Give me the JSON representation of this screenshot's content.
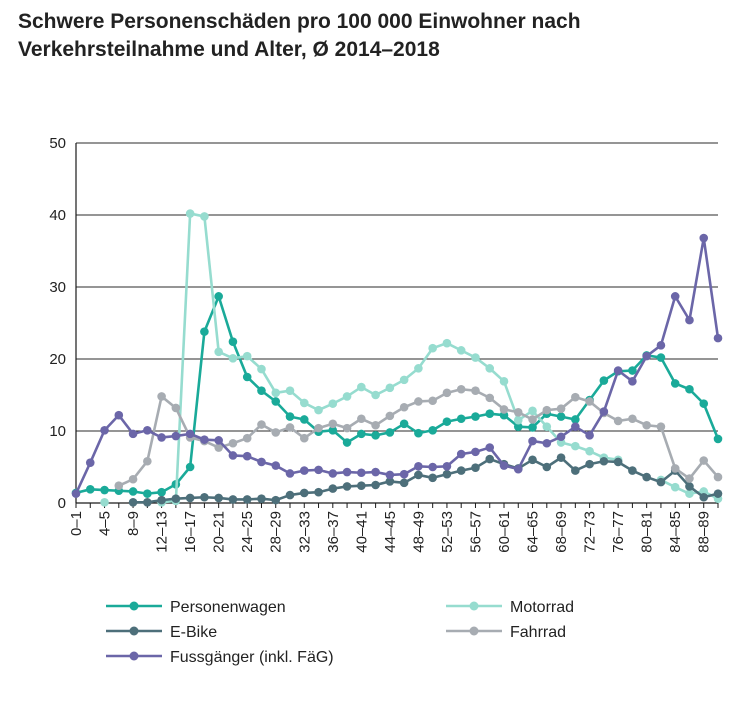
{
  "title_line1": "Schwere Personenschäden pro 100 000 Einwohner nach",
  "title_line2": "Verkehrsteilnahme und Alter, Ø 2014–2018",
  "chart_data": {
    "type": "line",
    "ylim": [
      0,
      50
    ],
    "y_ticks": [
      0,
      10,
      20,
      30,
      40,
      50
    ],
    "grid": "horizontal",
    "x": [
      "0–1",
      "2–3",
      "4–5",
      "6–7",
      "8–9",
      "10–11",
      "12–13",
      "14–15",
      "16–17",
      "18–19",
      "20–21",
      "22–23",
      "24–25",
      "26–27",
      "28–29",
      "30–31",
      "32–33",
      "34–35",
      "36–37",
      "38–39",
      "40–41",
      "42–43",
      "44–45",
      "46–47",
      "48–49",
      "50–51",
      "52–53",
      "54–55",
      "56–57",
      "58–59",
      "60–61",
      "62–63",
      "64–65",
      "66–67",
      "68–69",
      "70–71",
      "72–73",
      "74–75",
      "76–77",
      "78–79",
      "80–81",
      "82–83",
      "84–85",
      "86–87",
      "88–89",
      "90+"
    ],
    "x_tick_labels": [
      "0–1",
      "",
      "4–5",
      "",
      "8–9",
      "",
      "12–13",
      "",
      "16–17",
      "",
      "20–21",
      "",
      "24–25",
      "",
      "28–29",
      "",
      "32–33",
      "",
      "36–37",
      "",
      "40–41",
      "",
      "44–45",
      "",
      "48–49",
      "",
      "52–53",
      "",
      "56–57",
      "",
      "60–61",
      "",
      "64–65",
      "",
      "68–69",
      "",
      "72–73",
      "",
      "76–77",
      "",
      "80–81",
      "",
      "84–85",
      "",
      "88–89",
      ""
    ],
    "legend_position": "bottom",
    "series": [
      {
        "name": "Personenwagen",
        "color": "#1aaa99",
        "values": [
          1.4,
          1.9,
          1.8,
          1.7,
          1.6,
          1.3,
          1.5,
          2.6,
          5,
          23.8,
          28.7,
          22.4,
          17.5,
          15.6,
          14.1,
          12,
          11.6,
          9.9,
          10.1,
          8.4,
          9.6,
          9.4,
          9.8,
          11,
          9.7,
          10.1,
          11.3,
          11.7,
          12,
          12.4,
          12.2,
          10.6,
          10.5,
          12.4,
          12,
          11.6,
          14.3,
          17,
          18.3,
          18.4,
          20.5,
          20.2,
          16.6,
          15.8,
          13.8,
          8.9
        ]
      },
      {
        "name": "Motorrad",
        "color": "#96dccf",
        "values": [
          null,
          null,
          0.1,
          null,
          null,
          null,
          0.1,
          0.3,
          40.2,
          39.8,
          21,
          20.1,
          20.4,
          18.6,
          15.3,
          15.6,
          13.9,
          12.9,
          13.8,
          14.8,
          16.1,
          15,
          16,
          17.1,
          18.7,
          21.5,
          22.2,
          21.2,
          20.2,
          18.7,
          16.9,
          11.5,
          12.8,
          10.6,
          8.4,
          7.9,
          7.2,
          6.3,
          6,
          null,
          null,
          3.2,
          2.2,
          1.3,
          1.6,
          0.6
        ]
      },
      {
        "name": "E-Bike",
        "color": "#4d6f7a",
        "values": [
          null,
          null,
          null,
          null,
          0.1,
          0.1,
          0.4,
          0.6,
          0.7,
          0.8,
          0.7,
          0.5,
          0.5,
          0.6,
          0.4,
          1.1,
          1.4,
          1.5,
          2,
          2.3,
          2.4,
          2.5,
          3,
          2.8,
          3.9,
          3.5,
          4,
          4.5,
          4.9,
          6.1,
          5.4,
          4.8,
          6,
          5,
          6.3,
          4.5,
          5.4,
          5.8,
          5.7,
          4.5,
          3.6,
          2.9,
          4.5,
          2.3,
          0.8,
          1.3
        ]
      },
      {
        "name": "Fahrrad",
        "color": "#a7acb2",
        "values": [
          null,
          null,
          null,
          2.4,
          3.3,
          5.8,
          14.8,
          13.2,
          9.1,
          8.6,
          7.7,
          8.3,
          9,
          10.9,
          9.8,
          10.5,
          9,
          10.4,
          11,
          10.4,
          11.7,
          10.8,
          12.1,
          13.3,
          14.1,
          14.2,
          15.3,
          15.8,
          15.6,
          14.6,
          13,
          12.6,
          11.6,
          12.9,
          13.1,
          14.7,
          14.1,
          12.5,
          11.4,
          11.7,
          10.8,
          10.6,
          4.8,
          3.4,
          5.9,
          3.6
        ]
      },
      {
        "name": "Fussgänger (inkl. FäG)",
        "color": "#6b66a8",
        "values": [
          1.3,
          5.6,
          10.1,
          12.2,
          9.6,
          10.1,
          9.1,
          9.3,
          9.6,
          8.8,
          8.7,
          6.6,
          6.5,
          5.7,
          5.2,
          4.1,
          4.5,
          4.6,
          4.1,
          4.3,
          4.2,
          4.3,
          3.9,
          4,
          5.1,
          5,
          5.1,
          6.8,
          7.1,
          7.7,
          5.2,
          4.7,
          8.6,
          8.3,
          9.2,
          10.6,
          9.4,
          12.7,
          18.4,
          16.9,
          20.4,
          21.9,
          28.7,
          25.4,
          36.8,
          22.9
        ]
      }
    ]
  }
}
